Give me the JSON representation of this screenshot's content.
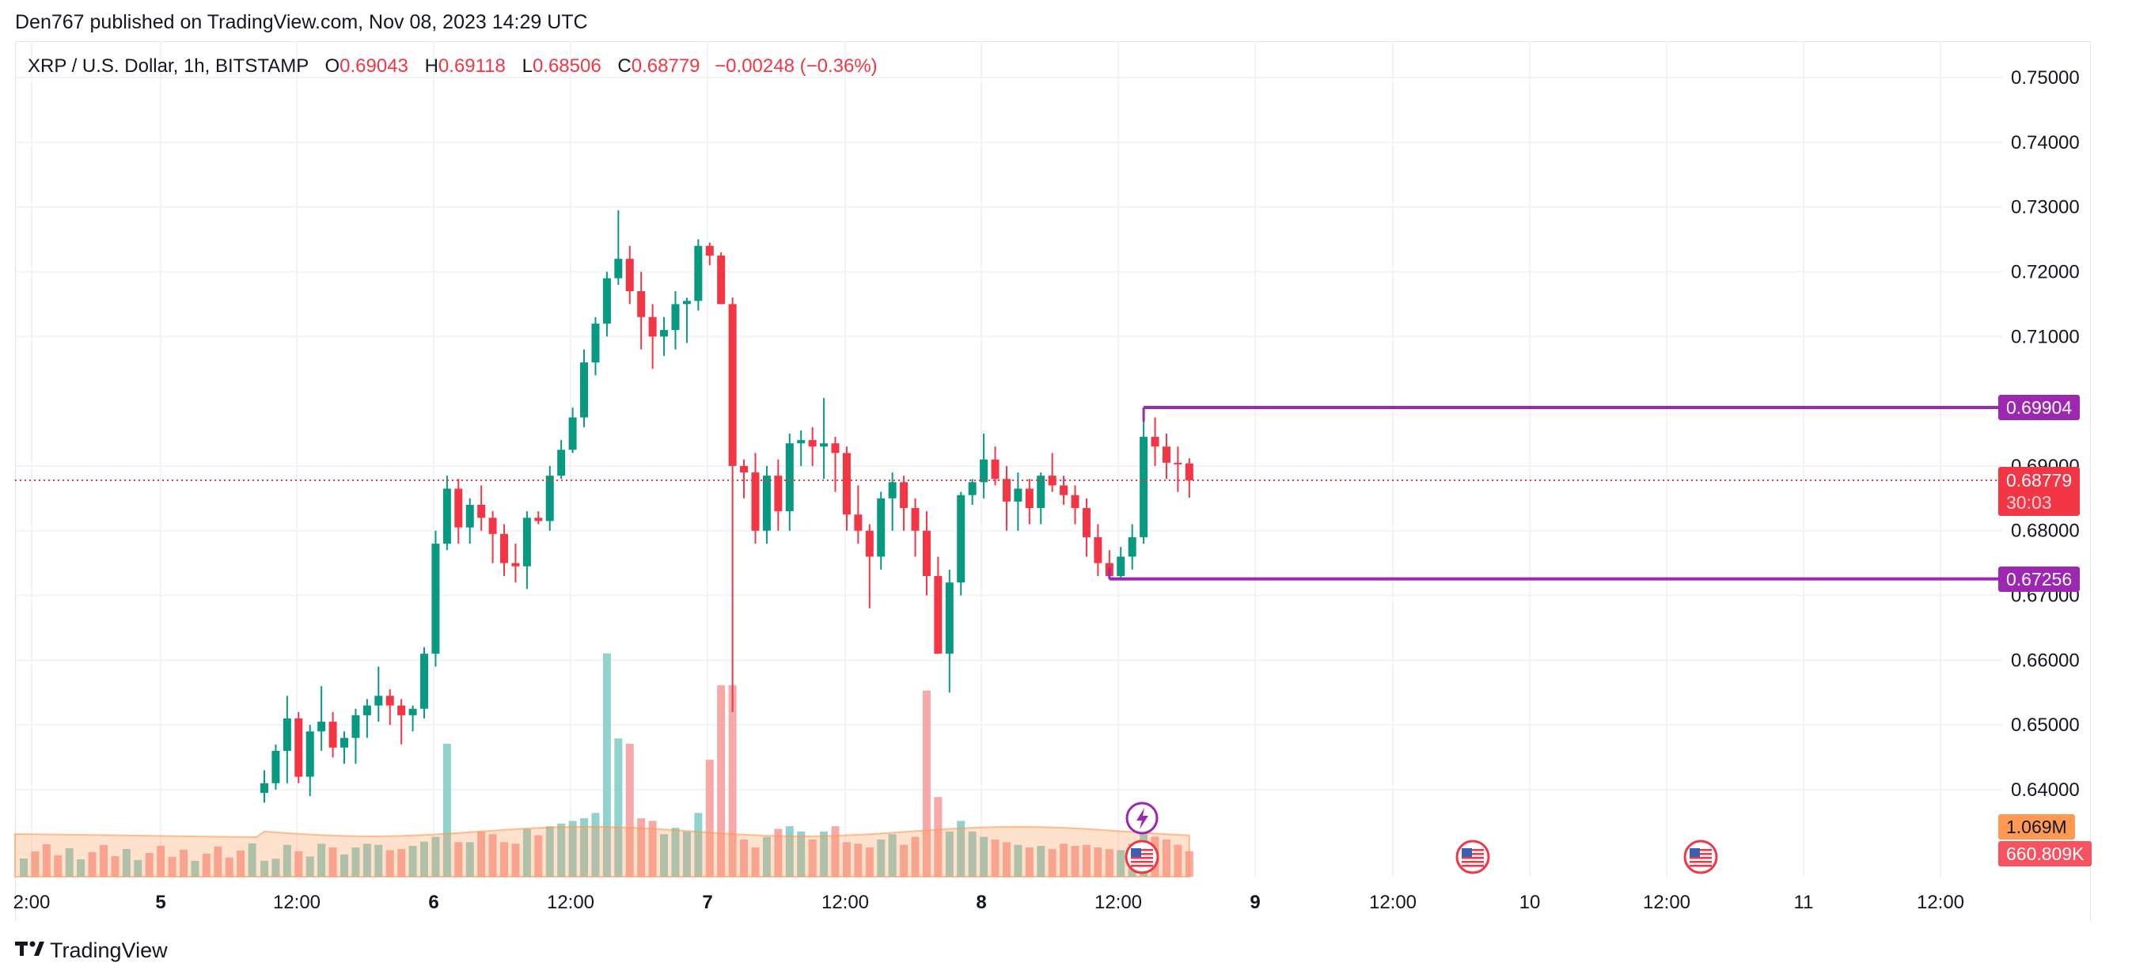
{
  "header": {
    "published": "Den767 published on TradingView.com, Nov 08, 2023 14:29 UTC"
  },
  "legend": {
    "symbol": "XRP / U.S. Dollar, 1h, BITSTAMP",
    "o_label": "O",
    "o": "0.69043",
    "h_label": "H",
    "h": "0.69118",
    "l_label": "L",
    "l": "0.68506",
    "c_label": "C",
    "c": "0.68779",
    "change": "−0.00248 (−0.36%)"
  },
  "price_tags": {
    "resistance": "0.69904",
    "last_price": "0.68779",
    "countdown": "30:03",
    "support": "0.67256",
    "volume_ma": "1.069M",
    "volume": "660.809K"
  },
  "footer": {
    "brand": "TradingView"
  },
  "colors": {
    "up": "#089981",
    "down": "#f23645",
    "level": "#9c27b0",
    "up_volume": "#92d2cc",
    "down_volume": "#f7a9a7",
    "volume_ma": "#ff9850",
    "grid": "#f0f3fa"
  },
  "chart_data": {
    "type": "candlestick",
    "timeframe": "1h",
    "x_tick_labels": [
      "2:00",
      "5",
      "12:00",
      "6",
      "12:00",
      "7",
      "12:00",
      "8",
      "12:00",
      "9",
      "12:00",
      "10",
      "12:00",
      "11",
      "12:00"
    ],
    "y_tick_labels": [
      "0.75000",
      "0.74000",
      "0.73000",
      "0.72000",
      "0.71000",
      "0.69000",
      "0.68000",
      "0.67000",
      "0.66000",
      "0.65000",
      "0.64000"
    ],
    "ylim": [
      0.63,
      0.752
    ],
    "horizontal_levels": [
      {
        "label": "resistance",
        "value": 0.69904
      },
      {
        "label": "support",
        "value": 0.67256
      }
    ],
    "last_price": 0.68779,
    "candles": [
      {
        "o": 0.6395,
        "h": 0.643,
        "l": 0.638,
        "c": 0.641
      },
      {
        "o": 0.641,
        "h": 0.647,
        "l": 0.64,
        "c": 0.646
      },
      {
        "o": 0.646,
        "h": 0.6545,
        "l": 0.641,
        "c": 0.651
      },
      {
        "o": 0.651,
        "h": 0.652,
        "l": 0.641,
        "c": 0.642
      },
      {
        "o": 0.642,
        "h": 0.65,
        "l": 0.639,
        "c": 0.649
      },
      {
        "o": 0.649,
        "h": 0.656,
        "l": 0.646,
        "c": 0.6505
      },
      {
        "o": 0.6505,
        "h": 0.652,
        "l": 0.645,
        "c": 0.6465
      },
      {
        "o": 0.6465,
        "h": 0.649,
        "l": 0.644,
        "c": 0.648
      },
      {
        "o": 0.648,
        "h": 0.6525,
        "l": 0.644,
        "c": 0.6515
      },
      {
        "o": 0.6515,
        "h": 0.654,
        "l": 0.648,
        "c": 0.653
      },
      {
        "o": 0.653,
        "h": 0.659,
        "l": 0.6505,
        "c": 0.6545
      },
      {
        "o": 0.6545,
        "h": 0.6555,
        "l": 0.65,
        "c": 0.653
      },
      {
        "o": 0.653,
        "h": 0.654,
        "l": 0.647,
        "c": 0.6515
      },
      {
        "o": 0.6515,
        "h": 0.653,
        "l": 0.649,
        "c": 0.6525
      },
      {
        "o": 0.6525,
        "h": 0.662,
        "l": 0.651,
        "c": 0.661
      },
      {
        "o": 0.661,
        "h": 0.68,
        "l": 0.659,
        "c": 0.678
      },
      {
        "o": 0.678,
        "h": 0.6885,
        "l": 0.677,
        "c": 0.6865
      },
      {
        "o": 0.6865,
        "h": 0.688,
        "l": 0.678,
        "c": 0.6805
      },
      {
        "o": 0.6805,
        "h": 0.685,
        "l": 0.678,
        "c": 0.684
      },
      {
        "o": 0.684,
        "h": 0.687,
        "l": 0.68,
        "c": 0.682
      },
      {
        "o": 0.682,
        "h": 0.683,
        "l": 0.675,
        "c": 0.6795
      },
      {
        "o": 0.6795,
        "h": 0.681,
        "l": 0.673,
        "c": 0.675
      },
      {
        "o": 0.675,
        "h": 0.678,
        "l": 0.672,
        "c": 0.6745
      },
      {
        "o": 0.6745,
        "h": 0.683,
        "l": 0.671,
        "c": 0.682
      },
      {
        "o": 0.682,
        "h": 0.683,
        "l": 0.681,
        "c": 0.6815
      },
      {
        "o": 0.6815,
        "h": 0.69,
        "l": 0.68,
        "c": 0.6885
      },
      {
        "o": 0.6885,
        "h": 0.694,
        "l": 0.688,
        "c": 0.6925
      },
      {
        "o": 0.6925,
        "h": 0.699,
        "l": 0.692,
        "c": 0.6975
      },
      {
        "o": 0.6975,
        "h": 0.708,
        "l": 0.696,
        "c": 0.706
      },
      {
        "o": 0.706,
        "h": 0.713,
        "l": 0.704,
        "c": 0.712
      },
      {
        "o": 0.712,
        "h": 0.72,
        "l": 0.71,
        "c": 0.719
      },
      {
        "o": 0.719,
        "h": 0.7295,
        "l": 0.718,
        "c": 0.722
      },
      {
        "o": 0.722,
        "h": 0.724,
        "l": 0.715,
        "c": 0.717
      },
      {
        "o": 0.717,
        "h": 0.72,
        "l": 0.708,
        "c": 0.713
      },
      {
        "o": 0.713,
        "h": 0.715,
        "l": 0.705,
        "c": 0.71
      },
      {
        "o": 0.71,
        "h": 0.713,
        "l": 0.707,
        "c": 0.711
      },
      {
        "o": 0.711,
        "h": 0.717,
        "l": 0.708,
        "c": 0.715
      },
      {
        "o": 0.715,
        "h": 0.716,
        "l": 0.709,
        "c": 0.7155
      },
      {
        "o": 0.7155,
        "h": 0.725,
        "l": 0.714,
        "c": 0.724
      },
      {
        "o": 0.724,
        "h": 0.7245,
        "l": 0.721,
        "c": 0.7225
      },
      {
        "o": 0.7225,
        "h": 0.723,
        "l": 0.715,
        "c": 0.715
      },
      {
        "o": 0.715,
        "h": 0.716,
        "l": 0.652,
        "c": 0.69
      },
      {
        "o": 0.69,
        "h": 0.691,
        "l": 0.685,
        "c": 0.689
      },
      {
        "o": 0.689,
        "h": 0.692,
        "l": 0.678,
        "c": 0.68
      },
      {
        "o": 0.68,
        "h": 0.69,
        "l": 0.678,
        "c": 0.6885
      },
      {
        "o": 0.6885,
        "h": 0.691,
        "l": 0.68,
        "c": 0.683
      },
      {
        "o": 0.683,
        "h": 0.695,
        "l": 0.68,
        "c": 0.6935
      },
      {
        "o": 0.6935,
        "h": 0.6955,
        "l": 0.69,
        "c": 0.694
      },
      {
        "o": 0.694,
        "h": 0.696,
        "l": 0.69,
        "c": 0.693
      },
      {
        "o": 0.693,
        "h": 0.7005,
        "l": 0.688,
        "c": 0.6935
      },
      {
        "o": 0.6935,
        "h": 0.6945,
        "l": 0.686,
        "c": 0.692
      },
      {
        "o": 0.692,
        "h": 0.693,
        "l": 0.68,
        "c": 0.6825
      },
      {
        "o": 0.6825,
        "h": 0.687,
        "l": 0.678,
        "c": 0.68
      },
      {
        "o": 0.68,
        "h": 0.681,
        "l": 0.668,
        "c": 0.676
      },
      {
        "o": 0.676,
        "h": 0.686,
        "l": 0.674,
        "c": 0.685
      },
      {
        "o": 0.685,
        "h": 0.689,
        "l": 0.68,
        "c": 0.6875
      },
      {
        "o": 0.6875,
        "h": 0.6885,
        "l": 0.68,
        "c": 0.6835
      },
      {
        "o": 0.6835,
        "h": 0.685,
        "l": 0.676,
        "c": 0.68
      },
      {
        "o": 0.68,
        "h": 0.683,
        "l": 0.67,
        "c": 0.673
      },
      {
        "o": 0.673,
        "h": 0.676,
        "l": 0.661,
        "c": 0.661
      },
      {
        "o": 0.661,
        "h": 0.674,
        "l": 0.655,
        "c": 0.672
      },
      {
        "o": 0.672,
        "h": 0.686,
        "l": 0.67,
        "c": 0.6855
      },
      {
        "o": 0.6855,
        "h": 0.688,
        "l": 0.684,
        "c": 0.6875
      },
      {
        "o": 0.6875,
        "h": 0.695,
        "l": 0.685,
        "c": 0.691
      },
      {
        "o": 0.691,
        "h": 0.693,
        "l": 0.687,
        "c": 0.688
      },
      {
        "o": 0.688,
        "h": 0.69,
        "l": 0.68,
        "c": 0.6845
      },
      {
        "o": 0.6845,
        "h": 0.689,
        "l": 0.68,
        "c": 0.6865
      },
      {
        "o": 0.6865,
        "h": 0.688,
        "l": 0.681,
        "c": 0.6835
      },
      {
        "o": 0.6835,
        "h": 0.689,
        "l": 0.681,
        "c": 0.6885
      },
      {
        "o": 0.6885,
        "h": 0.692,
        "l": 0.686,
        "c": 0.687
      },
      {
        "o": 0.687,
        "h": 0.6885,
        "l": 0.684,
        "c": 0.6855
      },
      {
        "o": 0.6855,
        "h": 0.687,
        "l": 0.681,
        "c": 0.6835
      },
      {
        "o": 0.6835,
        "h": 0.685,
        "l": 0.676,
        "c": 0.679
      },
      {
        "o": 0.679,
        "h": 0.681,
        "l": 0.673,
        "c": 0.675
      },
      {
        "o": 0.675,
        "h": 0.677,
        "l": 0.6725,
        "c": 0.673
      },
      {
        "o": 0.673,
        "h": 0.6775,
        "l": 0.6726,
        "c": 0.676
      },
      {
        "o": 0.676,
        "h": 0.681,
        "l": 0.674,
        "c": 0.679
      },
      {
        "o": 0.679,
        "h": 0.699,
        "l": 0.678,
        "c": 0.6945
      },
      {
        "o": 0.6945,
        "h": 0.6975,
        "l": 0.69,
        "c": 0.693
      },
      {
        "o": 0.693,
        "h": 0.695,
        "l": 0.688,
        "c": 0.6905
      },
      {
        "o": 0.6905,
        "h": 0.693,
        "l": 0.686,
        "c": 0.6904
      },
      {
        "o": 0.6904,
        "h": 0.6912,
        "l": 0.6851,
        "c": 0.6878
      }
    ],
    "volume_relative": [
      0.3,
      0.34,
      0.6,
      0.48,
      0.38,
      0.62,
      0.55,
      0.42,
      0.55,
      0.62,
      0.6,
      0.5,
      0.52,
      0.58,
      0.66,
      0.75,
      1.0,
      0.65,
      0.65,
      0.85,
      0.8,
      0.65,
      0.62,
      0.9,
      0.78,
      0.95,
      1.0,
      1.05,
      1.1,
      1.2,
      1.6,
      1.1,
      0.95,
      1.1,
      1.05,
      0.8,
      0.92,
      0.85,
      1.2,
      0.9,
      0.6,
      1.2,
      0.7,
      0.55,
      0.75,
      0.9,
      0.95,
      0.85,
      0.7,
      0.85,
      0.95,
      0.65,
      0.62,
      0.55,
      0.7,
      0.8,
      0.6,
      0.75,
      1.0,
      0.9,
      0.85,
      1.05,
      0.85,
      0.75,
      0.7,
      0.65,
      0.6,
      0.55,
      0.58,
      0.52,
      0.62,
      0.58,
      0.6,
      0.55,
      0.52,
      0.5,
      0.62,
      0.95,
      0.75,
      0.7,
      0.6,
      0.48
    ],
    "volume_tall": {
      "16": 2.5,
      "30": 4.2,
      "31": 2.6,
      "32": 2.5,
      "39": 2.2,
      "40": 3.6,
      "41": 3.6,
      "58": 3.5,
      "59": 1.5
    }
  }
}
